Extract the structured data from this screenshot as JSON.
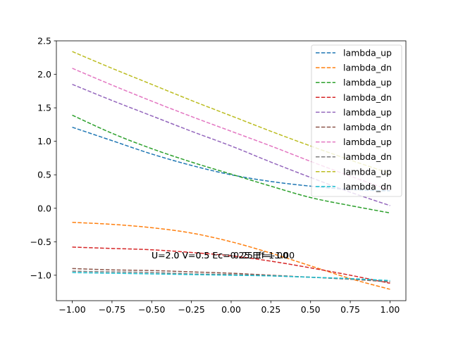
{
  "chart_data": {
    "type": "line",
    "title": "",
    "xlabel": "",
    "ylabel": "",
    "xlim": [
      -1.1,
      1.1
    ],
    "ylim": [
      -1.38,
      2.5
    ],
    "x_ticks": [
      -1.0,
      -0.75,
      -0.5,
      -0.25,
      0.0,
      0.25,
      0.5,
      0.75,
      1.0
    ],
    "x_tick_labels": [
      "−1.00",
      "−0.75",
      "−0.50",
      "−0.25",
      "0.00",
      "0.25",
      "0.50",
      "0.75",
      "1.00"
    ],
    "y_ticks": [
      -1.0,
      -0.5,
      0.0,
      0.5,
      1.0,
      1.5,
      2.0,
      2.5
    ],
    "y_tick_labels": [
      "−1.0",
      "−0.5",
      "0.0",
      "0.5",
      "1.0",
      "1.5",
      "2.0",
      "2.5"
    ],
    "grid": false,
    "legend_position": "top-right",
    "line_style": "dashed",
    "x": [
      -1.0,
      -0.75,
      -0.5,
      -0.25,
      0.0,
      0.25,
      0.5,
      0.75,
      1.0
    ],
    "series": [
      {
        "name": "lambda_up",
        "color": "#1f77b4",
        "values": [
          1.21,
          1.01,
          0.81,
          0.64,
          0.5,
          0.4,
          0.33,
          0.28,
          0.26
        ]
      },
      {
        "name": "lambda_dn",
        "color": "#ff7f0e",
        "values": [
          -0.21,
          -0.24,
          -0.29,
          -0.37,
          -0.5,
          -0.67,
          -0.86,
          -1.05,
          -1.21
        ]
      },
      {
        "name": "lambda_up",
        "color": "#2ca02c",
        "values": [
          1.39,
          1.12,
          0.89,
          0.69,
          0.51,
          0.33,
          0.16,
          0.04,
          -0.07
        ]
      },
      {
        "name": "lambda_dn",
        "color": "#d62728",
        "values": [
          -0.58,
          -0.6,
          -0.62,
          -0.66,
          -0.71,
          -0.79,
          -0.89,
          -1.0,
          -1.12
        ]
      },
      {
        "name": "lambda_up",
        "color": "#9467bd",
        "values": [
          1.85,
          1.61,
          1.38,
          1.15,
          0.93,
          0.69,
          0.46,
          0.24,
          0.04
        ]
      },
      {
        "name": "lambda_dn",
        "color": "#8c564b",
        "values": [
          -0.9,
          -0.92,
          -0.93,
          -0.95,
          -0.97,
          -1.0,
          -1.03,
          -1.06,
          -1.1
        ]
      },
      {
        "name": "lambda_up",
        "color": "#e377c2",
        "values": [
          2.09,
          1.84,
          1.6,
          1.37,
          1.15,
          0.93,
          0.7,
          0.48,
          0.27
        ]
      },
      {
        "name": "lambda_dn",
        "color": "#7f7f7f",
        "values": [
          -0.94,
          -0.95,
          -0.96,
          -0.98,
          -0.99,
          -1.01,
          -1.03,
          -1.06,
          -1.09
        ]
      },
      {
        "name": "lambda_up",
        "color": "#bcbd22",
        "values": [
          2.34,
          2.09,
          1.85,
          1.61,
          1.38,
          1.15,
          0.93,
          0.72,
          0.52
        ]
      },
      {
        "name": "lambda_dn",
        "color": "#17becf",
        "values": [
          -0.96,
          -0.97,
          -0.98,
          -0.99,
          -1.0,
          -1.01,
          -1.03,
          -1.05,
          -1.08
        ]
      }
    ],
    "annotations": [
      {
        "text": "U=2.0 V=0.5 Ec=0.25 Ef=1.00"
      },
      {
        "text": "U=2.0 V=0.5 Ec=-0.25 Ef=-1.00"
      }
    ]
  }
}
